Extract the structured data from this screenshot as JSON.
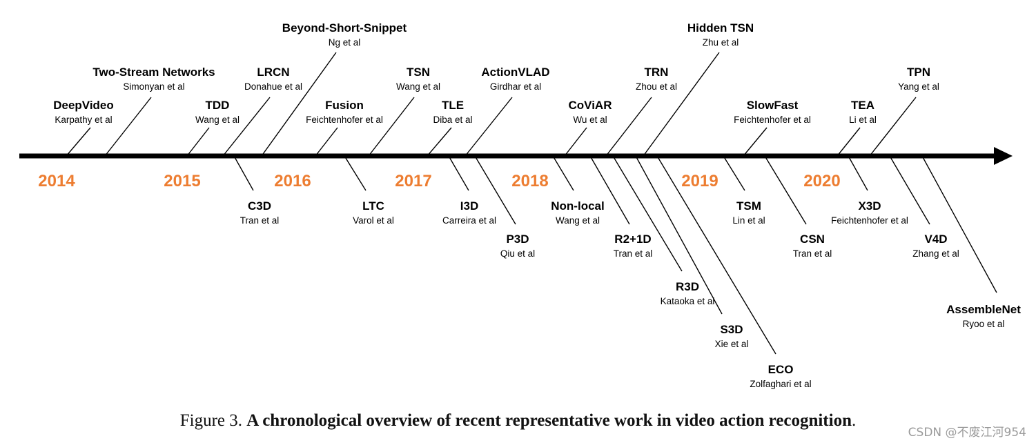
{
  "axis_color": "#000000",
  "year_color": "#ed7d31",
  "years": [
    "2014",
    "2015",
    "2016",
    "2017",
    "2018",
    "2019",
    "2020"
  ],
  "works_above": [
    {
      "name": "DeepVideo",
      "authors": "Karpathy et al"
    },
    {
      "name": "Two-Stream Networks",
      "authors": "Simonyan et al"
    },
    {
      "name": "TDD",
      "authors": "Wang et al"
    },
    {
      "name": "LRCN",
      "authors": "Donahue et al"
    },
    {
      "name": "Beyond-Short-Snippet",
      "authors": "Ng et al"
    },
    {
      "name": "Fusion",
      "authors": "Feichtenhofer et al"
    },
    {
      "name": "TSN",
      "authors": "Wang et al"
    },
    {
      "name": "TLE",
      "authors": "Diba et al"
    },
    {
      "name": "ActionVLAD",
      "authors": "Girdhar et al"
    },
    {
      "name": "CoViAR",
      "authors": "Wu et al"
    },
    {
      "name": "TRN",
      "authors": "Zhou et al"
    },
    {
      "name": "Hidden TSN",
      "authors": "Zhu et al"
    },
    {
      "name": "SlowFast",
      "authors": "Feichtenhofer et al"
    },
    {
      "name": "TEA",
      "authors": "Li et al"
    },
    {
      "name": "TPN",
      "authors": "Yang et al"
    }
  ],
  "works_below": [
    {
      "name": "C3D",
      "authors": "Tran et al"
    },
    {
      "name": "LTC",
      "authors": "Varol et al"
    },
    {
      "name": "I3D",
      "authors": "Carreira et al"
    },
    {
      "name": "P3D",
      "authors": "Qiu et al"
    },
    {
      "name": "Non-local",
      "authors": "Wang et al"
    },
    {
      "name": "R2+1D",
      "authors": "Tran et al"
    },
    {
      "name": "R3D",
      "authors": "Kataoka et al"
    },
    {
      "name": "S3D",
      "authors": "Xie et al"
    },
    {
      "name": "ECO",
      "authors": "Zolfaghari et al"
    },
    {
      "name": "TSM",
      "authors": "Lin et al"
    },
    {
      "name": "CSN",
      "authors": "Tran et al"
    },
    {
      "name": "X3D",
      "authors": "Feichtenhofer et al"
    },
    {
      "name": "V4D",
      "authors": "Zhang et al"
    },
    {
      "name": "AssembleNet",
      "authors": "Ryoo et al"
    }
  ],
  "caption": {
    "prefix": "Figure 3. ",
    "title": "A chronological overview of recent representative work in video action recognition",
    "suffix": "."
  },
  "watermark": "CSDN @不废江河954"
}
